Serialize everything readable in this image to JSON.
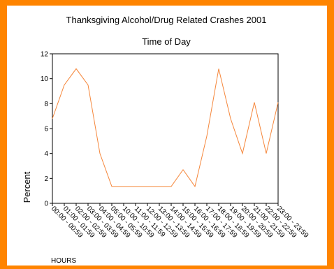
{
  "chart_data": {
    "type": "line",
    "title": "Thanksgiving Alcohol/Drug Related Crashes 2001",
    "subtitle": "Time of Day",
    "xlabel": "HOURS",
    "ylabel": "Percent",
    "ylim": [
      0,
      12
    ],
    "yticks": [
      "0",
      "2",
      "4",
      "6",
      "8",
      "10",
      "12"
    ],
    "grid": false,
    "legend": "none",
    "line_color": "#f5863a",
    "frame_color": "#ff8400",
    "categories": [
      "00:00 - 00:59",
      "01:00 - 01:59",
      "02:00 - 02:59",
      "03:00 - 03:59",
      "04:00 - 04:59",
      "05:00 - 05:59",
      "10:00 - 10:59",
      "11:00 - 11:59",
      "12:00 - 12:59",
      "13:00 - 13:59",
      "14:00 - 14:59",
      "15:00 - 15:59",
      "16:00 - 16:59",
      "17:00 - 17:59",
      "18:00 - 18:59",
      "19:00 - 19:59",
      "20:00 - 20:59",
      "21:00 - 21:59",
      "22:00 - 22:59",
      "23:00 - 23:59"
    ],
    "values": [
      6.8,
      9.5,
      10.8,
      9.5,
      4.0,
      1.35,
      1.35,
      1.35,
      1.35,
      1.35,
      1.35,
      2.7,
      1.35,
      5.4,
      10.8,
      6.8,
      4.0,
      8.1,
      4.0,
      8.1
    ]
  }
}
